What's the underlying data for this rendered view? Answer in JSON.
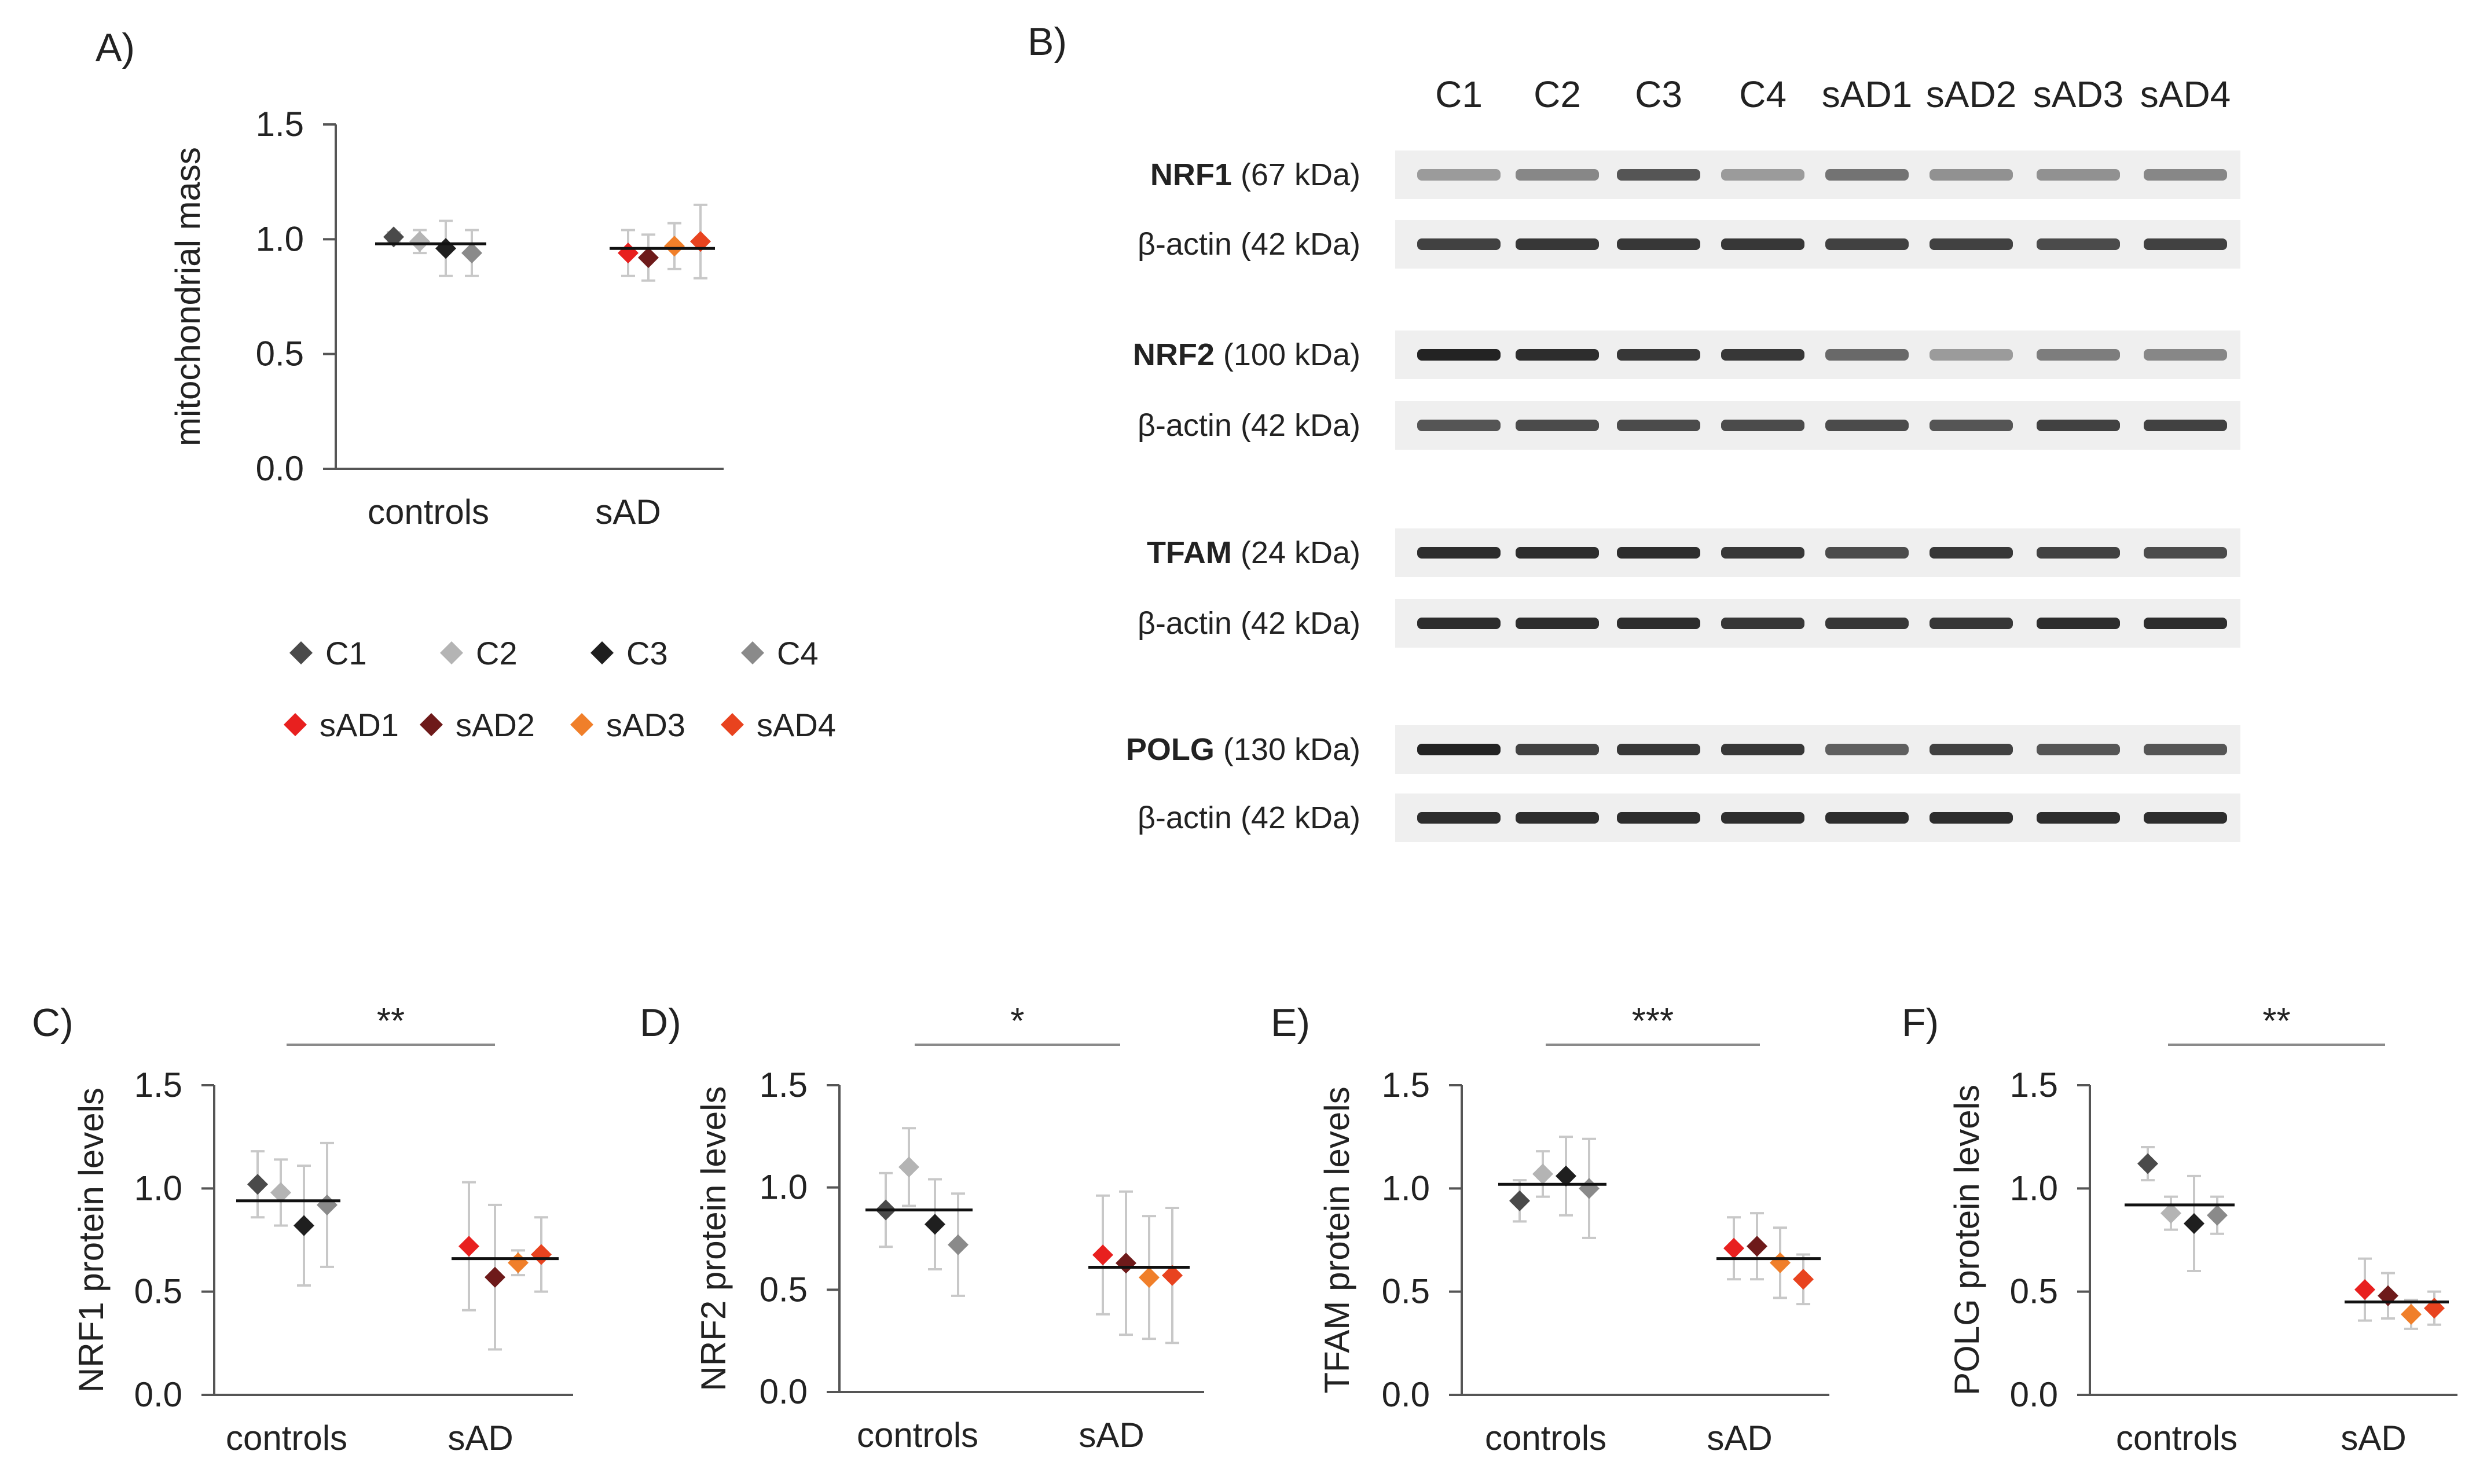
{
  "panels": {
    "A": "A)",
    "B": "B)",
    "C": "C)",
    "D": "D)",
    "E": "E)",
    "F": "F)"
  },
  "legend": [
    {
      "label": "C1",
      "color": "#4a4a4a"
    },
    {
      "label": "C2",
      "color": "#b4b4b4"
    },
    {
      "label": "C3",
      "color": "#1f1f1f"
    },
    {
      "label": "C4",
      "color": "#8a8a8a"
    },
    {
      "label": "sAD1",
      "color": "#e8201f"
    },
    {
      "label": "sAD2",
      "color": "#6e1a1a"
    },
    {
      "label": "sAD3",
      "color": "#f07f2a"
    },
    {
      "label": "sAD4",
      "color": "#e8431f"
    }
  ],
  "blot": {
    "lanes": [
      "C1",
      "C2",
      "C3",
      "C4",
      "sAD1",
      "sAD2",
      "sAD3",
      "sAD4"
    ],
    "rows": [
      {
        "name": "NRF1",
        "kda": "(67 kDa)",
        "bold": true,
        "intensity": [
          0.35,
          0.45,
          0.7,
          0.35,
          0.55,
          0.4,
          0.4,
          0.45
        ]
      },
      {
        "name": "β-actin",
        "kda": "(42 kDa)",
        "bold": false,
        "intensity": [
          0.8,
          0.85,
          0.85,
          0.85,
          0.8,
          0.8,
          0.75,
          0.8
        ]
      },
      {
        "name": "NRF2",
        "kda": "(100 kDa)",
        "bold": true,
        "intensity": [
          0.95,
          0.9,
          0.85,
          0.85,
          0.6,
          0.35,
          0.5,
          0.45
        ]
      },
      {
        "name": "β-actin",
        "kda": "(42 kDa)",
        "bold": false,
        "intensity": [
          0.7,
          0.75,
          0.75,
          0.75,
          0.75,
          0.7,
          0.8,
          0.8
        ]
      },
      {
        "name": "TFAM",
        "kda": "(24 kDa)",
        "bold": true,
        "intensity": [
          0.9,
          0.9,
          0.9,
          0.85,
          0.75,
          0.85,
          0.8,
          0.75
        ]
      },
      {
        "name": "β-actin",
        "kda": "(42 kDa)",
        "bold": false,
        "intensity": [
          0.9,
          0.9,
          0.9,
          0.85,
          0.85,
          0.85,
          0.9,
          0.9
        ]
      },
      {
        "name": "POLG",
        "kda": "(130 kDa)",
        "bold": true,
        "intensity": [
          0.95,
          0.8,
          0.85,
          0.85,
          0.65,
          0.8,
          0.7,
          0.7
        ]
      },
      {
        "name": "β-actin",
        "kda": "(42 kDa)",
        "bold": false,
        "intensity": [
          0.9,
          0.9,
          0.9,
          0.9,
          0.9,
          0.9,
          0.9,
          0.9
        ]
      }
    ]
  },
  "chart_data": [
    {
      "panel": "A",
      "type": "scatter",
      "ylabel": "mitochondrial mass",
      "ylim": [
        0,
        1.5
      ],
      "yticks": [
        "0.0",
        "0.5",
        "1.0",
        "1.5"
      ],
      "categories": [
        "controls",
        "sAD"
      ],
      "means": [
        0.98,
        0.96
      ],
      "significance": "",
      "points": [
        {
          "sample": "C1",
          "value": 1.01,
          "err": 0.02
        },
        {
          "sample": "C2",
          "value": 0.99,
          "err": 0.05
        },
        {
          "sample": "C3",
          "value": 0.96,
          "err": 0.12
        },
        {
          "sample": "C4",
          "value": 0.94,
          "err": 0.1
        },
        {
          "sample": "sAD1",
          "value": 0.94,
          "err": 0.1
        },
        {
          "sample": "sAD2",
          "value": 0.92,
          "err": 0.1
        },
        {
          "sample": "sAD3",
          "value": 0.97,
          "err": 0.1
        },
        {
          "sample": "sAD4",
          "value": 0.99,
          "err": 0.16
        }
      ]
    },
    {
      "panel": "C",
      "type": "scatter",
      "ylabel": "NRF1 protein levels",
      "ylim": [
        0,
        1.5
      ],
      "yticks": [
        "0.0",
        "0.5",
        "1.0",
        "1.5"
      ],
      "categories": [
        "controls",
        "sAD"
      ],
      "means": [
        0.94,
        0.66
      ],
      "significance": "**",
      "points": [
        {
          "sample": "C1",
          "value": 1.02,
          "err": 0.16
        },
        {
          "sample": "C2",
          "value": 0.98,
          "err": 0.16
        },
        {
          "sample": "C3",
          "value": 0.82,
          "err": 0.29
        },
        {
          "sample": "C4",
          "value": 0.92,
          "err": 0.3
        },
        {
          "sample": "sAD1",
          "value": 0.72,
          "err": 0.31
        },
        {
          "sample": "sAD2",
          "value": 0.57,
          "err": 0.35
        },
        {
          "sample": "sAD3",
          "value": 0.64,
          "err": 0.06
        },
        {
          "sample": "sAD4",
          "value": 0.68,
          "err": 0.18
        }
      ]
    },
    {
      "panel": "D",
      "type": "scatter",
      "ylabel": "NRF2 protein levels",
      "ylim": [
        0,
        1.5
      ],
      "yticks": [
        "0.0",
        "0.5",
        "1.0",
        "1.5"
      ],
      "categories": [
        "controls",
        "sAD"
      ],
      "means": [
        0.89,
        0.61
      ],
      "significance": "*",
      "points": [
        {
          "sample": "C1",
          "value": 0.89,
          "err": 0.18
        },
        {
          "sample": "C2",
          "value": 1.1,
          "err": 0.19
        },
        {
          "sample": "C3",
          "value": 0.82,
          "err": 0.22
        },
        {
          "sample": "C4",
          "value": 0.72,
          "err": 0.25
        },
        {
          "sample": "sAD1",
          "value": 0.67,
          "err": 0.29
        },
        {
          "sample": "sAD2",
          "value": 0.63,
          "err": 0.35
        },
        {
          "sample": "sAD3",
          "value": 0.56,
          "err": 0.3
        },
        {
          "sample": "sAD4",
          "value": 0.57,
          "err": 0.33
        }
      ]
    },
    {
      "panel": "E",
      "type": "scatter",
      "ylabel": "TFAM protein levels",
      "ylim": [
        0,
        1.5
      ],
      "yticks": [
        "0.0",
        "0.5",
        "1.0",
        "1.5"
      ],
      "categories": [
        "controls",
        "sAD"
      ],
      "means": [
        1.02,
        0.66
      ],
      "significance": "***",
      "points": [
        {
          "sample": "C1",
          "value": 0.94,
          "err": 0.1
        },
        {
          "sample": "C2",
          "value": 1.07,
          "err": 0.11
        },
        {
          "sample": "C3",
          "value": 1.06,
          "err": 0.19
        },
        {
          "sample": "C4",
          "value": 1.0,
          "err": 0.24
        },
        {
          "sample": "sAD1",
          "value": 0.71,
          "err": 0.15
        },
        {
          "sample": "sAD2",
          "value": 0.72,
          "err": 0.16
        },
        {
          "sample": "sAD3",
          "value": 0.64,
          "err": 0.17
        },
        {
          "sample": "sAD4",
          "value": 0.56,
          "err": 0.12
        }
      ]
    },
    {
      "panel": "F",
      "type": "scatter",
      "ylabel": "POLG protein levels",
      "ylim": [
        0,
        1.5
      ],
      "yticks": [
        "0.0",
        "0.5",
        "1.0",
        "1.5"
      ],
      "categories": [
        "controls",
        "sAD"
      ],
      "means": [
        0.92,
        0.45
      ],
      "significance": "**",
      "points": [
        {
          "sample": "C1",
          "value": 1.12,
          "err": 0.08
        },
        {
          "sample": "C2",
          "value": 0.88,
          "err": 0.08
        },
        {
          "sample": "C3",
          "value": 0.83,
          "err": 0.23
        },
        {
          "sample": "C4",
          "value": 0.87,
          "err": 0.09
        },
        {
          "sample": "sAD1",
          "value": 0.51,
          "err": 0.15
        },
        {
          "sample": "sAD2",
          "value": 0.48,
          "err": 0.11
        },
        {
          "sample": "sAD3",
          "value": 0.39,
          "err": 0.07
        },
        {
          "sample": "sAD4",
          "value": 0.42,
          "err": 0.08
        }
      ]
    }
  ]
}
